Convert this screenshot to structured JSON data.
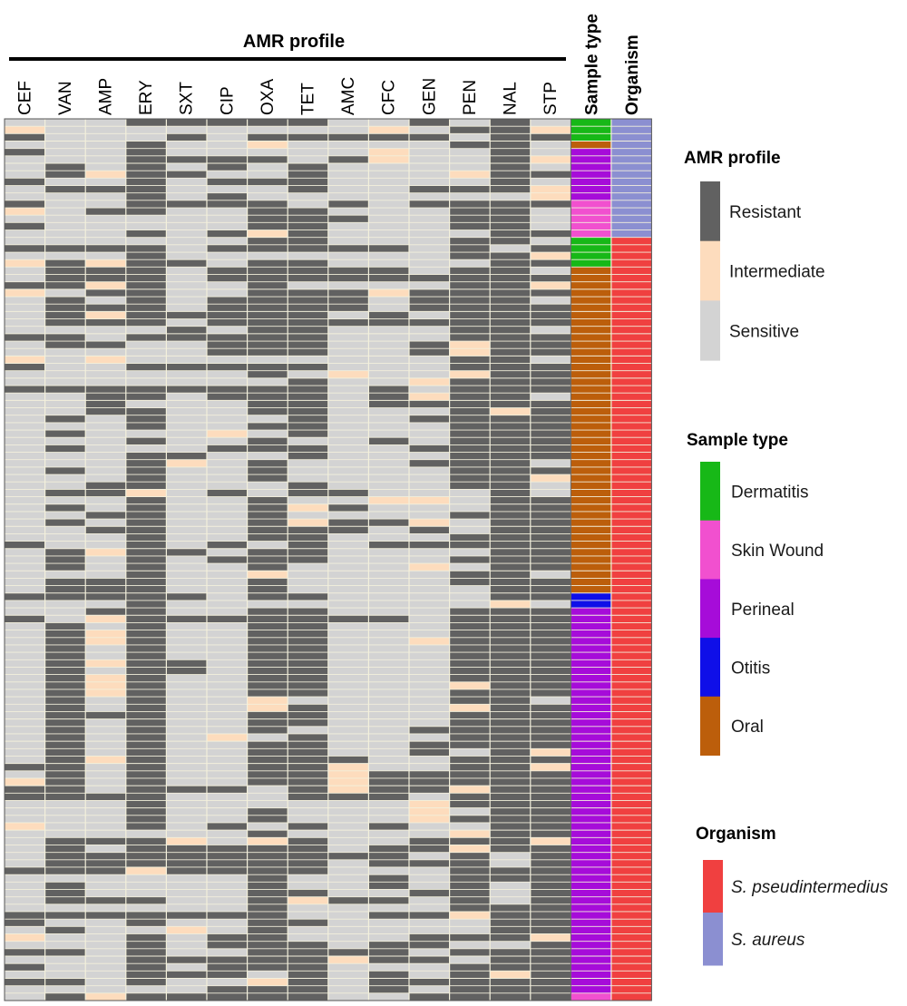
{
  "chart_data": {
    "type": "heatmap",
    "title": "AMR profile",
    "columns": [
      "CEF",
      "VAN",
      "AMP",
      "ERY",
      "SXT",
      "CIP",
      "OXA",
      "TET",
      "AMC",
      "CFC",
      "GEN",
      "PEN",
      "NAL",
      "STP"
    ],
    "annotation_columns": [
      "Sample type",
      "Organism"
    ],
    "value_key": {
      "R": "Resistant",
      "I": "Intermediate",
      "S": "Sensitive"
    },
    "rows": [
      "SSSRRRRRSSRSRS",
      "ISSSSSSSSISRRI",
      "RSSSRSRRRRRSRR",
      "SSSRSSISSSSRRS",
      "RSSRSSSSSISSRS",
      "SSSRRRRSRISSRI",
      "SRSRSRSRSSSSRS",
      "SRIRRSSRSSSIRR",
      "RSSRSRRRSSSSRS",
      "SRRRSSSRSSRRRI",
      "SSSRSRSSSSSSSI",
      "RSSRRRRSRSRRRR",
      "ISRRSSRRSSSRRS",
      "SSSSSSRRRSSRRS",
      "RSSSSSRRSSSRRS",
      "SSSRSRIRSSSSRR",
      "SSSSSSRRSSSRRS",
      "RRRRSRRRRRSRSR",
      "SSSRSSSSSSSRRI",
      "IRIRRSRRSSSSRR",
      "SRRRSRRRRRSRRS",
      "SRRRSRRRRRRRRR",
      "RRIRSSRSSSSRRI",
      "ISRRSSRRRIRRRR",
      "SRSRSRRRRSRRRS",
      "SRRRSRRRRSRRRR",
      "SRIRRRRRSRSRRR",
      "SRRRSRRRRRRRRR",
      "SSSSRSRRSSSRRS",
      "RRSRRRRRSSSRRR",
      "SRRSSRRRSSRIRR",
      "SSSSSRRRSSRIRR",
      "ISISSSSSSSSRRS",
      "RSSRRRRRSSSRRR",
      "SSSSSSRSISSIRR",
      "SSSSSSSRSSIRRR",
      "RRRRRRRRSRSRRR",
      "SSRRSRRRSRIRRS",
      "SSRSSSRRSRRRRR",
      "SSRRSSRRSSSRIR",
      "SRSRSSSRSSRRRR",
      "SSSRSSRRSSSRRR",
      "SRSSSISRSSSRRR",
      "SSSRSSRSSRSRRR",
      "SRSSSRRRSSRRRR",
      "SSSRRSSRSSSRRR",
      "SSSRISRSSSRRRS",
      "SRSRSSRSSSSRRR",
      "SSSRSSRSSSSRRI",
      "SSRRSSSRSSSRRS",
      "SRRISRSRRSSSRS",
      "SSSRSSRSSIISRR",
      "SRSRSSRIRSSSRR",
      "SSRRSSRSSSSRRR",
      "SRSRSSRIRRISRR",
      "SSRRSSRRRSRSRR",
      "SSSRSSRRSSSRRR",
      "RSSRSRSRSRRRRR",
      "SRIRRSRRSSSSRR",
      "SRSRSRRRSSSRRR",
      "SRSRSSRSSSISRR",
      "SSSRSSISSSSRRS",
      "SRRRSSRSSSSRRR",
      "SRRRSSRSSSSSRR",
      "RRRRRSRRSSSSRR",
      "SSSRSSSSSSSSIS",
      "SSRRSSRRSSSRRR",
      "RSIRRRRRRRSRRR",
      "SRSRSSRRSSSRRR",
      "SRIRSSRRSSSRRR",
      "SRIRSSRRSSIRRR",
      "SRSRSSRRSSSRRR",
      "SRSRSSRRSSSRRR",
      "SRIRRSRRSSSRRR",
      "SRSRRSRRSSSRRR",
      "SRIRSSRRSSSRRR",
      "SRIRSSRRSSSIRR",
      "SRIRSSRRSSSRRR",
      "SRSRSSISSSSRRS",
      "SRSRSSIRSSSIRR",
      "SRRRSSRRSSSRRR",
      "SRSRSSRRSSSRRR",
      "SRSRSSRSSSRRRR",
      "SRSRSISRSSSRRR",
      "SRSRSSRRSSRRRR",
      "SRSRSSRRSSRSRI",
      "SRIRSSRRRSSRRR",
      "RRSRSSRRISSRRI",
      "SRSRSSRRIRRRRR",
      "IRSRSSRRIRRRRR",
      "RRSRRRSRIRRIRR",
      "RRRRSSSRRRSRRR",
      "SSSRSSSSSSIRRR",
      "SSSRSSRSSSISRR",
      "SSSRSSRSSSIRRR",
      "ISSRSRSRSRSSRR",
      "SSSSSSRSSSSIRR",
      "SRRRISIRSSRRRI",
      "SRSRRRRRSRRIRR",
      "SRRRRRRRRRSRSR",
      "SRRRRRRRSRRRSR",
      "RRRIRRRRSSSRRR",
      "SSSSSSRSSRSRRR",
      "SRSSSSRSSRSRSR",
      "SRSSSSRRSSRRSR",
      "SRRRSSRIRRSRSR",
      "SSSSSSRSSSSRRR",
      "RRRRRRRSSRRIRR",
      "RSSRSSRRSSSSRR",
      "SRSSISRSSSSSRR",
      "ISSRSRRSSSRRRI",
      "SSSRSRRRSRRSSR",
      "RRSRSSRRRRSRRR",
      "SSSRRRRRIRRSRR",
      "RSSRSRRRSSSRRR",
      "SSSRRRSRSRSRIR",
      "RRSRSSIRSRRRRR",
      "SSSSSRRRSRSRRR",
      "SRIRRRRRSSRRRR"
    ],
    "sample_type": [
      "Dermatitis",
      "Dermatitis",
      "Dermatitis",
      "Oral",
      "Perineal",
      "Perineal",
      "Perineal",
      "Perineal",
      "Perineal",
      "Perineal",
      "Perineal",
      "Skin Wound",
      "Skin Wound",
      "Skin Wound",
      "Skin Wound",
      "Skin Wound",
      "Dermatitis",
      "Dermatitis",
      "Dermatitis",
      "Dermatitis",
      "Oral",
      "Oral",
      "Oral",
      "Oral",
      "Oral",
      "Oral",
      "Oral",
      "Oral",
      "Oral",
      "Oral",
      "Oral",
      "Oral",
      "Oral",
      "Oral",
      "Oral",
      "Oral",
      "Oral",
      "Oral",
      "Oral",
      "Oral",
      "Oral",
      "Oral",
      "Oral",
      "Oral",
      "Oral",
      "Oral",
      "Oral",
      "Oral",
      "Oral",
      "Oral",
      "Oral",
      "Oral",
      "Oral",
      "Oral",
      "Oral",
      "Oral",
      "Oral",
      "Oral",
      "Oral",
      "Oral",
      "Oral",
      "Oral",
      "Oral",
      "Oral",
      "Otitis",
      "Otitis",
      "Perineal",
      "Perineal",
      "Perineal",
      "Perineal",
      "Perineal",
      "Perineal",
      "Perineal",
      "Perineal",
      "Perineal",
      "Perineal",
      "Perineal",
      "Perineal",
      "Perineal",
      "Perineal",
      "Perineal",
      "Perineal",
      "Perineal",
      "Perineal",
      "Perineal",
      "Perineal",
      "Perineal",
      "Perineal",
      "Perineal",
      "Perineal",
      "Perineal",
      "Perineal",
      "Perineal",
      "Perineal",
      "Perineal",
      "Perineal",
      "Perineal",
      "Perineal",
      "Perineal",
      "Perineal",
      "Perineal",
      "Perineal",
      "Perineal",
      "Perineal",
      "Perineal",
      "Perineal",
      "Perineal",
      "Perineal",
      "Perineal",
      "Perineal",
      "Perineal",
      "Perineal",
      "Perineal",
      "Perineal",
      "Perineal",
      "Perineal",
      "Perineal",
      "Perineal",
      "Skin Wound",
      "Skin Wound",
      "Skin Wound",
      "Skin Wound",
      "Skin Wound"
    ],
    "organism": [
      "S. aureus",
      "S. aureus",
      "S. aureus",
      "S. aureus",
      "S. aureus",
      "S. aureus",
      "S. aureus",
      "S. aureus",
      "S. aureus",
      "S. aureus",
      "S. aureus",
      "S. aureus",
      "S. aureus",
      "S. aureus",
      "S. aureus",
      "S. aureus",
      "S. pseudintermedius",
      "S. pseudintermedius",
      "S. pseudintermedius",
      "S. pseudintermedius",
      "S. pseudintermedius",
      "S. pseudintermedius",
      "S. pseudintermedius",
      "S. pseudintermedius",
      "S. pseudintermedius",
      "S. pseudintermedius",
      "S. pseudintermedius",
      "S. pseudintermedius",
      "S. pseudintermedius",
      "S. pseudintermedius",
      "S. pseudintermedius",
      "S. pseudintermedius",
      "S. pseudintermedius",
      "S. pseudintermedius",
      "S. pseudintermedius",
      "S. pseudintermedius",
      "S. pseudintermedius",
      "S. pseudintermedius",
      "S. pseudintermedius",
      "S. pseudintermedius",
      "S. pseudintermedius",
      "S. pseudintermedius",
      "S. pseudintermedius",
      "S. pseudintermedius",
      "S. pseudintermedius",
      "S. pseudintermedius",
      "S. pseudintermedius",
      "S. pseudintermedius",
      "S. pseudintermedius",
      "S. pseudintermedius",
      "S. pseudintermedius",
      "S. pseudintermedius",
      "S. pseudintermedius",
      "S. pseudintermedius",
      "S. pseudintermedius",
      "S. pseudintermedius",
      "S. pseudintermedius",
      "S. pseudintermedius",
      "S. pseudintermedius",
      "S. pseudintermedius",
      "S. pseudintermedius",
      "S. pseudintermedius",
      "S. pseudintermedius",
      "S. pseudintermedius",
      "S. pseudintermedius",
      "S. pseudintermedius",
      "S. pseudintermedius",
      "S. pseudintermedius",
      "S. pseudintermedius",
      "S. pseudintermedius",
      "S. pseudintermedius",
      "S. pseudintermedius",
      "S. pseudintermedius",
      "S. pseudintermedius",
      "S. pseudintermedius",
      "S. pseudintermedius",
      "S. pseudintermedius",
      "S. pseudintermedius",
      "S. pseudintermedius",
      "S. pseudintermedius",
      "S. pseudintermedius",
      "S. pseudintermedius",
      "S. pseudintermedius",
      "S. pseudintermedius",
      "S. pseudintermedius",
      "S. pseudintermedius",
      "S. pseudintermedius",
      "S. pseudintermedius",
      "S. pseudintermedius",
      "S. pseudintermedius",
      "S. pseudintermedius",
      "S. pseudintermedius",
      "S. pseudintermedius",
      "S. pseudintermedius",
      "S. pseudintermedius",
      "S. pseudintermedius",
      "S. pseudintermedius",
      "S. pseudintermedius",
      "S. pseudintermedius",
      "S. pseudintermedius",
      "S. pseudintermedius",
      "S. pseudintermedius",
      "S. pseudintermedius",
      "S. pseudintermedius",
      "S. pseudintermedius",
      "S. pseudintermedius",
      "S. pseudintermedius",
      "S. pseudintermedius",
      "S. pseudintermedius",
      "S. pseudintermedius",
      "S. pseudintermedius",
      "S. pseudintermedius",
      "S. pseudintermedius",
      "S. pseudintermedius",
      "S. pseudintermedius",
      "S. pseudintermedius",
      "S. pseudintermedius",
      "S. pseudintermedius",
      "S. pseudintermedius",
      "S. pseudintermedius",
      "S. pseudintermedius",
      "S. pseudintermedius",
      "S. pseudintermedius"
    ]
  },
  "colors": {
    "Resistant": "#616161",
    "Intermediate": "#fddcbd",
    "Sensitive": "#d3d3d3",
    "Dermatitis": "#17b817",
    "Skin Wound": "#f150cf",
    "Perineal": "#a60cd9",
    "Otitis": "#0f0fe8",
    "Oral": "#bc5e0b",
    "S. pseudintermedius": "#f04040",
    "S. aureus": "#8b8fd1",
    "grid_line": "#f3f0dc",
    "border": "#555555"
  },
  "legends": {
    "amr": {
      "title": "AMR profile",
      "items": [
        "Resistant",
        "Intermediate",
        "Sensitive"
      ]
    },
    "sample_type": {
      "title": "Sample type",
      "items": [
        "Dermatitis",
        "Skin Wound",
        "Perineal",
        "Otitis",
        "Oral"
      ]
    },
    "organism": {
      "title": "Organism",
      "items": [
        "S. pseudintermedius",
        "S. aureus"
      ]
    }
  }
}
